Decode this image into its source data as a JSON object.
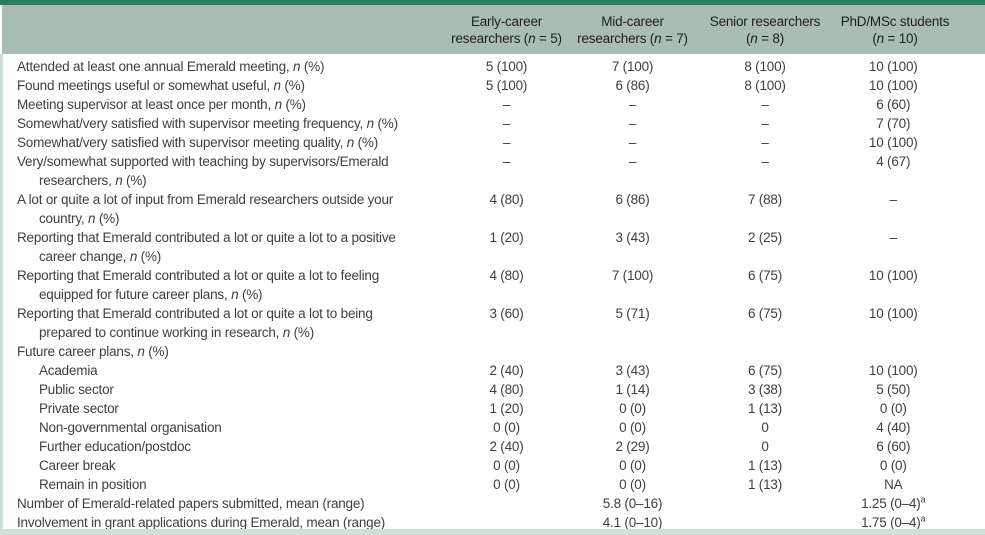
{
  "colors": {
    "top_bar": "#2b7d5e",
    "header_bg": "#a8beb2",
    "frame": "#cfdfd6",
    "text": "#3f3f3f"
  },
  "table": {
    "columns": [
      {
        "label": "Early-career\nresearchers (*n* = 5)"
      },
      {
        "label": "Mid-career\nresearchers (*n* = 7)"
      },
      {
        "label": "Senior researchers\n(*n* = 8)"
      },
      {
        "label": "PhD/MSc students\n(*n* = 10)"
      }
    ],
    "rows": [
      {
        "label": "Attended at least one annual Emerald meeting, *n* (%)",
        "sub": false,
        "values": [
          "5 (100)",
          "7 (100)",
          "8 (100)",
          "10 (100)"
        ]
      },
      {
        "label": "Found meetings useful or somewhat useful, *n* (%)",
        "sub": false,
        "values": [
          "5 (100)",
          "6 (86)",
          "8 (100)",
          "10 (100)"
        ]
      },
      {
        "label": "Meeting supervisor at least once per month, *n* (%)",
        "sub": false,
        "values": [
          "–",
          "–",
          "–",
          "6 (60)"
        ]
      },
      {
        "label": "Somewhat/very satisfied with supervisor meeting frequency, *n* (%)",
        "sub": false,
        "values": [
          "–",
          "–",
          "–",
          "7 (70)"
        ]
      },
      {
        "label": "Somewhat/very satisfied with supervisor meeting quality, *n* (%)",
        "sub": false,
        "values": [
          "–",
          "–",
          "–",
          "10 (100)"
        ]
      },
      {
        "label": "Very/somewhat supported with teaching by supervisors/Emerald\nresearchers, *n* (%)",
        "sub": false,
        "values": [
          "–",
          "–",
          "–",
          "4 (67)"
        ]
      },
      {
        "label": "A lot or quite a lot of input from Emerald researchers outside your\ncountry, *n* (%)",
        "sub": false,
        "values": [
          "4 (80)",
          "6 (86)",
          "7 (88)",
          "–"
        ]
      },
      {
        "label": "Reporting that Emerald contributed a lot or quite a lot to a positive\ncareer change, *n* (%)",
        "sub": false,
        "values": [
          "1 (20)",
          "3 (43)",
          "2 (25)",
          "–"
        ]
      },
      {
        "label": "Reporting that Emerald contributed a lot or quite a lot to feeling\nequipped for future career plans, *n* (%)",
        "sub": false,
        "values": [
          "4 (80)",
          "7 (100)",
          "6 (75)",
          "10 (100)"
        ]
      },
      {
        "label": "Reporting that Emerald contributed a lot or quite a lot to being\nprepared to continue working in research, *n* (%)",
        "sub": false,
        "values": [
          "3 (60)",
          "5 (71)",
          "6 (75)",
          "10 (100)"
        ]
      },
      {
        "label": "Future career plans, *n* (%)",
        "sub": false,
        "values": [
          "",
          "",
          "",
          ""
        ]
      },
      {
        "label": "Academia",
        "sub": true,
        "values": [
          "2 (40)",
          "3 (43)",
          "6 (75)",
          "10 (100)"
        ]
      },
      {
        "label": "Public sector",
        "sub": true,
        "values": [
          "4 (80)",
          "1 (14)",
          "3 (38)",
          "5 (50)"
        ]
      },
      {
        "label": "Private sector",
        "sub": true,
        "values": [
          "1 (20)",
          "0 (0)",
          "1 (13)",
          "0 (0)"
        ]
      },
      {
        "label": "Non-governmental organisation",
        "sub": true,
        "values": [
          "0 (0)",
          "0 (0)",
          "0",
          "4 (40)"
        ]
      },
      {
        "label": "Further education/postdoc",
        "sub": true,
        "values": [
          "2 (40)",
          "2 (29)",
          "0",
          "6 (60)"
        ]
      },
      {
        "label": "Career break",
        "sub": true,
        "values": [
          "0 (0)",
          "0 (0)",
          "1 (13)",
          "0 (0)"
        ]
      },
      {
        "label": "Remain in position",
        "sub": true,
        "values": [
          "0 (0)",
          "0 (0)",
          "1 (13)",
          "NA"
        ]
      },
      {
        "label": "Number of Emerald-related papers submitted, mean (range)",
        "sub": false,
        "values": [
          "",
          "5.8 (0–16)",
          "",
          "1.25 (0–4)^a"
        ]
      },
      {
        "label": "Involvement in grant applications during Emerald, mean (range)",
        "sub": false,
        "values": [
          "",
          "4.1 (0–10)",
          "",
          "1.75 (0–4)^a"
        ]
      }
    ]
  }
}
